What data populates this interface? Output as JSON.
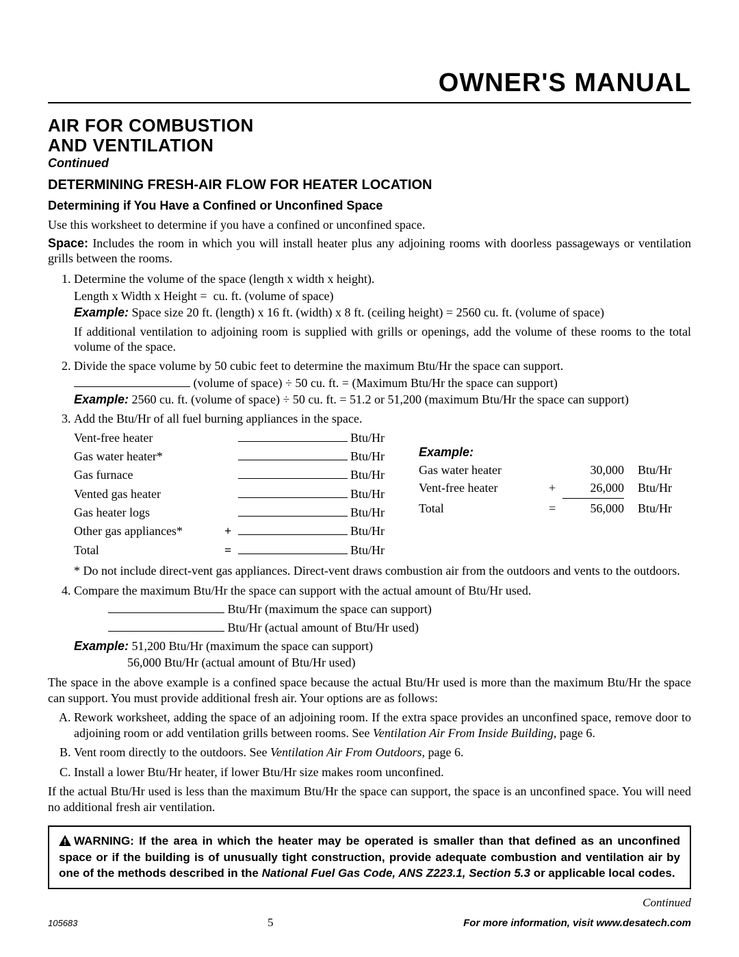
{
  "header": {
    "title": "OWNER'S MANUAL"
  },
  "section": {
    "title": "AIR FOR COMBUSTION AND VENTILATION",
    "continued": "Continued",
    "h2": "DETERMINING FRESH-AIR FLOW FOR HEATER LOCATION",
    "h3": "Determining if You Have a Confined or Unconfined Space",
    "intro": "Use this worksheet to determine if you have a confined or unconfined space.",
    "space_label": "Space:",
    "space_text": " Includes the room in which you will install heater plus any adjoining rooms with doorless passageways or ventilation grills between the rooms."
  },
  "steps": {
    "s1": {
      "text": "Determine the volume of the space (length x width x height).",
      "line2_prefix": "Length x Width x Height = ",
      "line2_suffix": " cu. ft. (volume of space)",
      "example_label": "Example:",
      "example_text": " Space size 20 ft. (length) x 16 ft. (width) x 8 ft. (ceiling height) =  2560 cu. ft. (volume of space)",
      "note": "If additional ventilation to adjoining room is supplied with grills or openings, add the volume of these rooms to the total volume of the space."
    },
    "s2": {
      "text": "Divide the space volume by 50 cubic feet to determine the maximum Btu/Hr the space can support.",
      "line2_suffix": " (volume of space) ÷ 50 cu. ft. = (Maximum Btu/Hr the space can support)",
      "example_label": "Example:",
      "example_text": " 2560 cu. ft. (volume of space) ÷ 50 cu. ft. = 51.2 or 51,200 (maximum Btu/Hr the space can support)"
    },
    "s3": {
      "text": "Add the Btu/Hr of all fuel burning appliances in the space.",
      "appliances": [
        {
          "label": "Vent-free heater",
          "op": ""
        },
        {
          "label": "Gas water heater*",
          "op": ""
        },
        {
          "label": "Gas furnace",
          "op": ""
        },
        {
          "label": "Vented gas heater",
          "op": ""
        },
        {
          "label": "Gas heater logs",
          "op": ""
        },
        {
          "label": "Other gas appliances*",
          "op": "+"
        },
        {
          "label": "Total",
          "op": "="
        }
      ],
      "unit": "Btu/Hr",
      "example_label": "Example:",
      "example_rows": [
        {
          "label": "Gas water heater",
          "op": "",
          "value": "30,000",
          "unit": "Btu/Hr"
        },
        {
          "label": "Vent-free heater",
          "op": "+",
          "value": "26,000",
          "unit": "Btu/Hr"
        },
        {
          "label": "Total",
          "op": "=",
          "value": "56,000",
          "unit": "Btu/Hr"
        }
      ],
      "footnote": "* Do not include direct-vent gas appliances. Direct-vent draws combustion air from the outdoors and vents to the outdoors."
    },
    "s4": {
      "text": "Compare the maximum Btu/Hr the space can support with the actual amount of Btu/Hr used.",
      "line_a_suffix": " Btu/Hr (maximum the space can support)",
      "line_b_suffix": " Btu/Hr (actual amount of Btu/Hr used)",
      "example_label": "Example:",
      "example_a": " 51,200 Btu/Hr (maximum the space can support)",
      "example_b": "56,000 Btu/Hr (actual amount of Btu/Hr used)"
    }
  },
  "after": {
    "para1": "The space in the above example is a confined space because the actual Btu/Hr used is more than the maximum Btu/Hr the space can support. You must provide additional fresh air. Your options are as follows:",
    "optA_pre": "Rework worksheet, adding the space of an adjoining room. If the extra space provides an unconfined space, remove door to adjoining room or add ventilation grills between rooms. See ",
    "optA_ref": "Ventilation Air From Inside Building,",
    "optA_post": " page 6.",
    "optB_pre": "Vent room directly to the outdoors. See ",
    "optB_ref": "Ventilation Air From Outdoors,",
    "optB_post": " page 6.",
    "optC": "Install a lower Btu/Hr heater, if lower Btu/Hr size makes room unconfined.",
    "para2": "If the actual Btu/Hr used is less than the maximum Btu/Hr the space can support, the space is an unconfined space. You will need no additional fresh air ventilation."
  },
  "warning": {
    "label": "WARNING: ",
    "text_pre": "If the area in which the heater may be operated is smaller than that defined as an unconfined space or if the building is of unusually tight construction, provide adequate combustion and ventilation air by one of the methods described in the ",
    "code_ref": "National Fuel Gas Code, ANS Z223.1, Section 5.3",
    "text_post": " or applicable local codes."
  },
  "footer": {
    "continued": "Continued",
    "doc_num": "105683",
    "page_num": "5",
    "info": "For more information, visit www.desatech.com"
  },
  "style": {
    "blank_width_medium": "200px",
    "blank_width_short": "170px"
  }
}
